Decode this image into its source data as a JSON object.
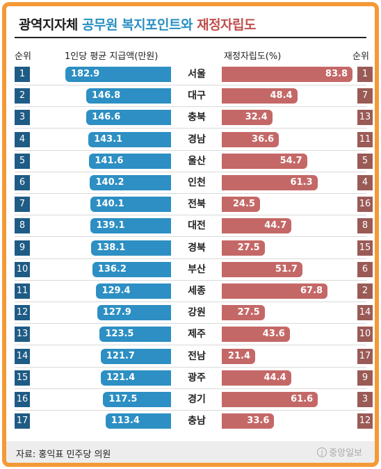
{
  "title": {
    "part1": "광역지자체",
    "part2": "공무원 복지포인트와",
    "part3": "재정자립도"
  },
  "headers": {
    "left_rank": "순위",
    "left_metric": "1인당 평균 지급액(만원)",
    "right_metric": "재정자립도(%)",
    "right_rank": "순위"
  },
  "colors": {
    "left_bar": "#2d8fc3",
    "right_bar": "#c46867",
    "left_rank_box": "#1e5b85",
    "right_rank_box": "#9a5a56",
    "frame": "#f39a37"
  },
  "chart_data": {
    "type": "bar",
    "categories": [
      "서울",
      "대구",
      "충북",
      "경남",
      "울산",
      "인천",
      "전북",
      "대전",
      "경북",
      "부산",
      "세종",
      "강원",
      "제주",
      "전남",
      "광주",
      "경기",
      "충남"
    ],
    "left_ranks": [
      1,
      2,
      3,
      4,
      5,
      6,
      7,
      8,
      9,
      10,
      11,
      12,
      13,
      14,
      15,
      16,
      17
    ],
    "right_ranks": [
      1,
      7,
      13,
      11,
      5,
      4,
      16,
      8,
      15,
      6,
      2,
      14,
      10,
      17,
      9,
      3,
      12
    ],
    "series": [
      {
        "name": "1인당 평균 지급액(만원)",
        "values": [
          182.9,
          146.8,
          146.6,
          143.1,
          141.6,
          140.2,
          140.1,
          139.1,
          138.1,
          136.2,
          129.4,
          127.9,
          123.5,
          121.7,
          121.4,
          117.5,
          113.4
        ],
        "labels": [
          "182.9",
          "146.8",
          "146.6",
          "143.1",
          "141.6",
          "140.2",
          "140.1",
          "139.1",
          "138.1",
          "136.2",
          "129.4",
          "127.9",
          "123.5",
          "121.7",
          "121.4",
          "117.5",
          "113.4"
        ]
      },
      {
        "name": "재정자립도(%)",
        "values": [
          83.8,
          48.4,
          32.4,
          36.6,
          54.7,
          61.3,
          24.5,
          44.7,
          27.5,
          51.7,
          67.8,
          27.5,
          43.6,
          21.4,
          44.4,
          61.6,
          33.6
        ],
        "labels": [
          "83.8",
          "48.4",
          "32.4",
          "36.6",
          "54.7",
          "61.3",
          "24.5",
          "44.7",
          "27.5",
          "51.7",
          "67.8",
          "27.5",
          "43.6",
          "21.4",
          "44.4",
          "61.6",
          "33.6"
        ]
      }
    ]
  },
  "footer": {
    "source": "자료: 홍익표 민주당 의원",
    "logo_mark": "J",
    "logo_text": "중앙일보"
  }
}
